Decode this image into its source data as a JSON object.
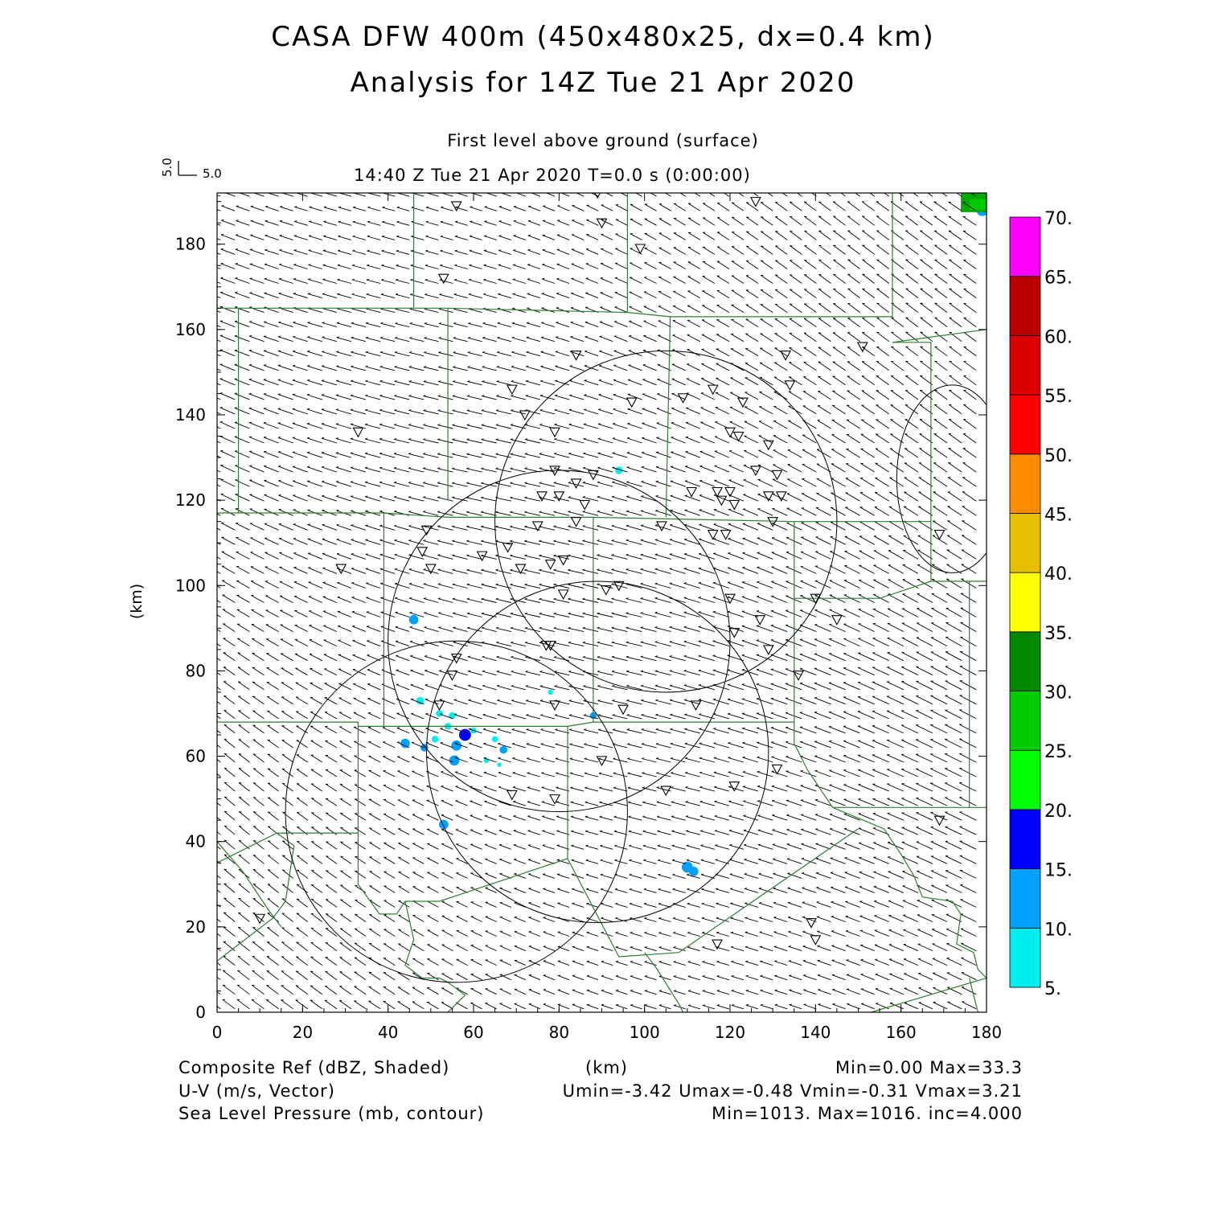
{
  "header": {
    "title_line1": "CASA DFW 400m (450x480x25, dx=0.4 km)",
    "title_line2": "Analysis for 14Z Tue 21 Apr 2020",
    "level": "First level above ground (surface)",
    "time_line": "14:40 Z Tue 21 Apr 2020    T=0.0 s (0:00:00)",
    "vector_scale_v": "5.0",
    "vector_scale_u": "5.0"
  },
  "axes": {
    "xlabel": "(km)",
    "ylabel": "(km)",
    "xlim": [
      0,
      180
    ],
    "ylim": [
      0,
      192
    ],
    "x_ticks": [
      "0",
      "20",
      "40",
      "60",
      "80",
      "100",
      "120",
      "140",
      "160",
      "180"
    ],
    "y_ticks": [
      "0",
      "20",
      "40",
      "60",
      "80",
      "100",
      "120",
      "140",
      "160",
      "180"
    ]
  },
  "colorbar": {
    "levels": [
      "5.",
      "10.",
      "15.",
      "20.",
      "25.",
      "30.",
      "35.",
      "40.",
      "45.",
      "50.",
      "55.",
      "60.",
      "65.",
      "70."
    ],
    "colors": [
      "#00eeee",
      "#00a0ff",
      "#0000ff",
      "#00ff00",
      "#00cc00",
      "#008800",
      "#ffff00",
      "#e6c000",
      "#ff8c00",
      "#ff0000",
      "#dd0000",
      "#bb0000",
      "#ff00ff"
    ]
  },
  "footer": {
    "left1": "Composite Ref (dBZ, Shaded)",
    "center1": "(km)",
    "right1": "Min=0.00 Max=33.3",
    "left2": "U-V (m/s, Vector)",
    "right2": "Umin=-3.42 Umax=-0.48 Vmin=-0.31 Vmax=3.21",
    "left3": "Sea Level Pressure (mb, contour)",
    "right3": "Min=1013. Max=1016. inc=4.000"
  },
  "colors": {
    "boundary": "#2e7d32",
    "contour": "#000000",
    "vector": "#000000"
  },
  "radar_rings": [
    {
      "cx": 105,
      "cy": 115,
      "r": 40
    },
    {
      "cx": 80,
      "cy": 87,
      "r": 40
    },
    {
      "cx": 89,
      "cy": 61,
      "r": 40
    },
    {
      "cx": 56,
      "cy": 47,
      "r": 40
    }
  ],
  "pressure_contours": [
    {
      "cx": 172,
      "cy": 125,
      "rx": 13,
      "ry": 22
    }
  ],
  "reflectivity_echoes": [
    {
      "x": 46,
      "y": 92,
      "r": 1.1,
      "dbz": 12
    },
    {
      "x": 94,
      "y": 127,
      "r": 0.9,
      "dbz": 7
    },
    {
      "x": 47.5,
      "y": 73,
      "r": 0.9,
      "dbz": 7
    },
    {
      "x": 52,
      "y": 70,
      "r": 0.8,
      "dbz": 7
    },
    {
      "x": 55,
      "y": 69.5,
      "r": 0.8,
      "dbz": 7
    },
    {
      "x": 44,
      "y": 63,
      "r": 1.1,
      "dbz": 14
    },
    {
      "x": 48.5,
      "y": 62,
      "r": 0.9,
      "dbz": 10
    },
    {
      "x": 51,
      "y": 64,
      "r": 0.8,
      "dbz": 7
    },
    {
      "x": 54,
      "y": 67,
      "r": 0.8,
      "dbz": 7
    },
    {
      "x": 58,
      "y": 65,
      "r": 1.4,
      "dbz": 16
    },
    {
      "x": 56,
      "y": 62.5,
      "r": 1.2,
      "dbz": 12
    },
    {
      "x": 55.5,
      "y": 59,
      "r": 1.2,
      "dbz": 10
    },
    {
      "x": 60,
      "y": 66,
      "r": 0.7,
      "dbz": 7
    },
    {
      "x": 65,
      "y": 64,
      "r": 0.7,
      "dbz": 7
    },
    {
      "x": 67,
      "y": 61.5,
      "r": 0.9,
      "dbz": 10
    },
    {
      "x": 63,
      "y": 59,
      "r": 0.6,
      "dbz": 7
    },
    {
      "x": 66,
      "y": 58,
      "r": 0.5,
      "dbz": 7
    },
    {
      "x": 53,
      "y": 44,
      "r": 1.1,
      "dbz": 14
    },
    {
      "x": 110,
      "y": 34,
      "r": 1.3,
      "dbz": 10
    },
    {
      "x": 111.5,
      "y": 33,
      "r": 1.1,
      "dbz": 10
    },
    {
      "x": 78,
      "y": 75,
      "r": 0.6,
      "dbz": 7
    },
    {
      "x": 88,
      "y": 69.5,
      "r": 0.8,
      "dbz": 10
    },
    {
      "x": 177,
      "y": 190,
      "r": 1.8,
      "dbz": 25
    },
    {
      "x": 179,
      "y": 188,
      "r": 1.4,
      "dbz": 12
    }
  ],
  "stations": [
    [
      56,
      189
    ],
    [
      89,
      192
    ],
    [
      90,
      185
    ],
    [
      99,
      179
    ],
    [
      53,
      172
    ],
    [
      126,
      190
    ],
    [
      151,
      156
    ],
    [
      133,
      154
    ],
    [
      84,
      154
    ],
    [
      134,
      147
    ],
    [
      116,
      146
    ],
    [
      69,
      146
    ],
    [
      109,
      144
    ],
    [
      97,
      143
    ],
    [
      123,
      143
    ],
    [
      72,
      140
    ],
    [
      33,
      136
    ],
    [
      79,
      136
    ],
    [
      120,
      136
    ],
    [
      122,
      135
    ],
    [
      129,
      133
    ],
    [
      126,
      127
    ],
    [
      131,
      126
    ],
    [
      79,
      127
    ],
    [
      88,
      126
    ],
    [
      84,
      124
    ],
    [
      111,
      122
    ],
    [
      117,
      122
    ],
    [
      120,
      122
    ],
    [
      76,
      121
    ],
    [
      80,
      121
    ],
    [
      129,
      121
    ],
    [
      132,
      121
    ],
    [
      86,
      119
    ],
    [
      118,
      120
    ],
    [
      121,
      119
    ],
    [
      84,
      115
    ],
    [
      130,
      115
    ],
    [
      75,
      114
    ],
    [
      104,
      114
    ],
    [
      116,
      112
    ],
    [
      119,
      112
    ],
    [
      49,
      113
    ],
    [
      169,
      112
    ],
    [
      68,
      109
    ],
    [
      48,
      108
    ],
    [
      62,
      107
    ],
    [
      78,
      105
    ],
    [
      81,
      106
    ],
    [
      29,
      104
    ],
    [
      50,
      104
    ],
    [
      71,
      104
    ],
    [
      81,
      98
    ],
    [
      91,
      99
    ],
    [
      94,
      100
    ],
    [
      120,
      97
    ],
    [
      140,
      97
    ],
    [
      127,
      92
    ],
    [
      145,
      92
    ],
    [
      121,
      89
    ],
    [
      77,
      86
    ],
    [
      78,
      86
    ],
    [
      56,
      83
    ],
    [
      129,
      85
    ],
    [
      55,
      79
    ],
    [
      136,
      79
    ],
    [
      52,
      72
    ],
    [
      79,
      72
    ],
    [
      95,
      71
    ],
    [
      112,
      72
    ],
    [
      90,
      59
    ],
    [
      131,
      57
    ],
    [
      121,
      53
    ],
    [
      105,
      52
    ],
    [
      69,
      51
    ],
    [
      79,
      50
    ],
    [
      169,
      45
    ],
    [
      10,
      22
    ],
    [
      139,
      21
    ],
    [
      140,
      17
    ],
    [
      117,
      16
    ]
  ],
  "wind": {
    "u_min": -3.42,
    "u_max": -0.48,
    "v_min": -0.31,
    "v_max": 3.21
  }
}
